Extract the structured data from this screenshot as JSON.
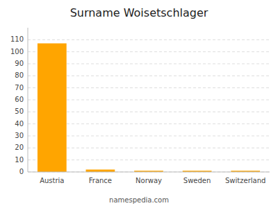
{
  "chart_data": {
    "type": "bar",
    "title": "Surname Woisetschlager",
    "categories": [
      "Austria",
      "France",
      "Norway",
      "Sweden",
      "Switzerland"
    ],
    "values": [
      107,
      2,
      1,
      1,
      1
    ],
    "color": "#FFA500",
    "ylim": [
      0,
      120
    ],
    "yticks": [
      0,
      10,
      20,
      30,
      40,
      50,
      60,
      70,
      80,
      90,
      100,
      110
    ],
    "grid": true,
    "annotations": [
      "namespedia.com"
    ]
  }
}
